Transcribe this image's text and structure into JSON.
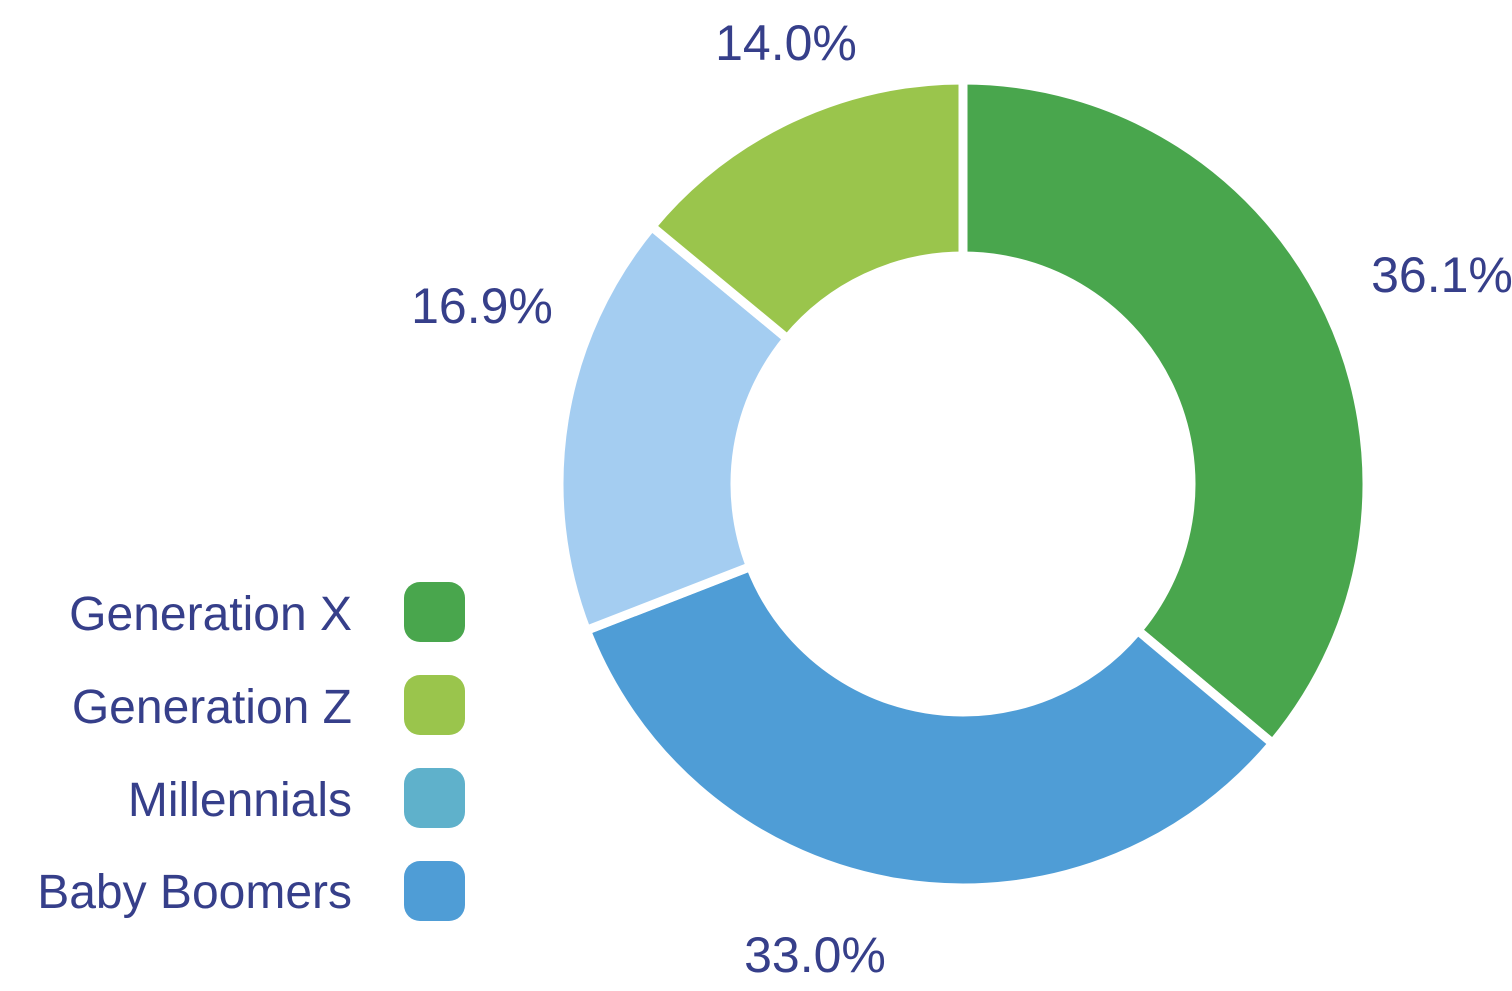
{
  "chart_data": {
    "type": "pie",
    "donut": true,
    "categories": [
      "Generation X",
      "Baby Boomers",
      "Millennials",
      "Generation Z"
    ],
    "values": [
      36.1,
      33.0,
      16.9,
      14.0
    ],
    "value_labels": [
      "36.1%",
      "33.0%",
      "16.9%",
      "14.0%"
    ],
    "slice_colors": [
      "#49a64d",
      "#4f9dd6",
      "#a4cdf1",
      "#9ac54c"
    ],
    "start_at": "12 o'clock",
    "direction": "clockwise",
    "legend": {
      "placement": "bottom-left",
      "items": [
        {
          "label": "Generation X",
          "color": "#49a64d"
        },
        {
          "label": "Generation Z",
          "color": "#9ac54c"
        },
        {
          "label": "Millennials",
          "color": "#5fb1cb"
        },
        {
          "label": "Baby Boomers",
          "color": "#4f9dd6"
        }
      ]
    },
    "text_color": "#363f8a"
  }
}
